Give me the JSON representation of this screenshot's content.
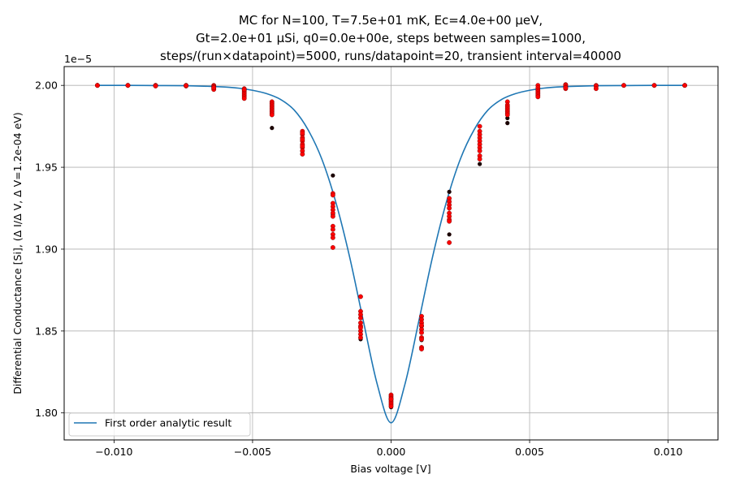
{
  "chart_data": {
    "type": "scatter",
    "title_lines": [
      "MC for N=100, T=7.5e+01 mK, Ec=4.0e+00 μeV,",
      "Gt=2.0e+01 μSi, q0=0.0e+00e, steps between samples=1000,",
      "steps/(run×datapoint)=5000, runs/datapoint=20, transient interval=40000"
    ],
    "xlabel": "Bias voltage [V]",
    "ylabel": "Differential Conductance [Si], (Δ I/Δ V, Δ V=1.2e-04 eV)",
    "y_offset_label": "1e−5",
    "xlim": [
      -0.0118,
      0.0118
    ],
    "ylim": [
      1.7835,
      2.0115
    ],
    "x_ticks": [
      -0.01,
      -0.005,
      0.0,
      0.005,
      0.01
    ],
    "x_tick_labels": [
      "−0.010",
      "−0.005",
      "0.000",
      "0.005",
      "0.010"
    ],
    "y_ticks": [
      1.8,
      1.85,
      1.9,
      1.95,
      2.0
    ],
    "y_tick_labels": [
      "1.80",
      "1.85",
      "1.90",
      "1.95",
      "2.00"
    ],
    "grid": true,
    "legend": {
      "placement": "lower-left",
      "entries": [
        "First order analytic result"
      ]
    },
    "colors": {
      "curve": "#1f77b4",
      "points_red": "#ff0000",
      "points_dark": "#1a0000"
    },
    "curve": {
      "name": "First order analytic result",
      "x": [
        -0.0106,
        -0.0095,
        -0.0085,
        -0.0075,
        -0.0065,
        -0.006,
        -0.0055,
        -0.005,
        -0.0045,
        -0.004,
        -0.0035,
        -0.003,
        -0.0025,
        -0.002,
        -0.0015,
        -0.001,
        -0.0005,
        0.0,
        0.0005,
        0.001,
        0.0015,
        0.002,
        0.0025,
        0.003,
        0.0035,
        0.004,
        0.0045,
        0.005,
        0.0055,
        0.006,
        0.0065,
        0.0075,
        0.0085,
        0.0095,
        0.0106
      ],
      "y": [
        2.0,
        2.0,
        1.9999,
        1.9998,
        1.9994,
        1.999,
        1.9983,
        1.997,
        1.995,
        1.9915,
        1.985,
        1.973,
        1.955,
        1.929,
        1.8955,
        1.856,
        1.8175,
        1.794,
        1.8175,
        1.856,
        1.8955,
        1.929,
        1.955,
        1.973,
        1.985,
        1.9915,
        1.995,
        1.997,
        1.9983,
        1.999,
        1.9994,
        1.9998,
        1.9999,
        2.0,
        2.0
      ]
    },
    "points": [
      {
        "x": -0.0106,
        "y": [
          2.0,
          2.0,
          2.0,
          2.0
        ],
        "dark": [
          2.0
        ]
      },
      {
        "x": -0.0095,
        "y": [
          2.0,
          2.0,
          2.0
        ],
        "dark": [
          2.0
        ]
      },
      {
        "x": -0.0085,
        "y": [
          2.0,
          1.9998,
          2.0,
          1.9996
        ],
        "dark": [
          2.0
        ]
      },
      {
        "x": -0.0074,
        "y": [
          2.0,
          2.0,
          1.9996,
          1.9998
        ],
        "dark": [
          2.0
        ]
      },
      {
        "x": -0.0064,
        "y": [
          2.0,
          1.9995,
          1.999,
          1.998,
          1.9975,
          1.9985
        ],
        "dark": [
          1.9985
        ]
      },
      {
        "x": -0.0053,
        "y": [
          1.998,
          1.997,
          1.996,
          1.995,
          1.994,
          1.993,
          1.992,
          1.9975
        ],
        "dark": [
          1.9965
        ]
      },
      {
        "x": -0.0043,
        "y": [
          1.99,
          1.989,
          1.988,
          1.987,
          1.986,
          1.985,
          1.984,
          1.983,
          1.982
        ],
        "dark": [
          1.974,
          1.989
        ]
      },
      {
        "x": -0.0032,
        "y": [
          1.972,
          1.97,
          1.968,
          1.966,
          1.964,
          1.962,
          1.96,
          1.958,
          1.971,
          1.967,
          1.963
        ],
        "dark": [
          1.968
        ]
      },
      {
        "x": -0.0021,
        "y": [
          1.934,
          1.928,
          1.926,
          1.924,
          1.922,
          1.92,
          1.914,
          1.912,
          1.909,
          1.907,
          1.901,
          1.933
        ],
        "dark": [
          1.945,
          1.921
        ]
      },
      {
        "x": -0.0011,
        "y": [
          1.871,
          1.862,
          1.86,
          1.858,
          1.855,
          1.853,
          1.85,
          1.848,
          1.846,
          1.852
        ],
        "dark": [
          1.845
        ]
      },
      {
        "x": 0.0,
        "y": [
          1.811,
          1.81,
          1.809,
          1.808,
          1.807,
          1.806,
          1.805,
          1.804,
          1.8085
        ],
        "dark": [
          1.8035
        ]
      },
      {
        "x": 0.0011,
        "y": [
          1.859,
          1.857,
          1.855,
          1.853,
          1.851,
          1.849,
          1.846,
          1.845,
          1.84,
          1.839,
          1.8535
        ],
        "dark": [
          1.8445
        ]
      },
      {
        "x": 0.0021,
        "y": [
          1.931,
          1.929,
          1.927,
          1.925,
          1.922,
          1.92,
          1.918,
          1.917,
          1.904
        ],
        "dark": [
          1.935,
          1.909
        ]
      },
      {
        "x": 0.0032,
        "y": [
          1.975,
          1.972,
          1.97,
          1.968,
          1.966,
          1.964,
          1.962,
          1.96,
          1.957,
          1.955
        ],
        "dark": [
          1.952
        ]
      },
      {
        "x": 0.0042,
        "y": [
          1.99,
          1.988,
          1.987,
          1.986,
          1.985,
          1.984,
          1.983,
          1.982
        ],
        "dark": [
          1.98,
          1.977
        ]
      },
      {
        "x": 0.0053,
        "y": [
          2.0,
          1.9985,
          1.997,
          1.996,
          1.995,
          1.994,
          1.993
        ],
        "dark": [
          1.9975
        ]
      },
      {
        "x": 0.0063,
        "y": [
          2.0005,
          2.0,
          1.999,
          1.998,
          1.9985
        ],
        "dark": [
          2.0
        ]
      },
      {
        "x": 0.0074,
        "y": [
          2.0,
          1.9995,
          1.998
        ],
        "dark": [
          1.9985
        ]
      },
      {
        "x": 0.0084,
        "y": [
          2.0,
          2.0
        ],
        "dark": [
          2.0
        ]
      },
      {
        "x": 0.0095,
        "y": [
          2.0,
          2.0
        ],
        "dark": [
          2.0
        ]
      },
      {
        "x": 0.0106,
        "y": [
          2.0,
          2.0,
          2.0
        ],
        "dark": [
          2.0
        ]
      }
    ]
  }
}
